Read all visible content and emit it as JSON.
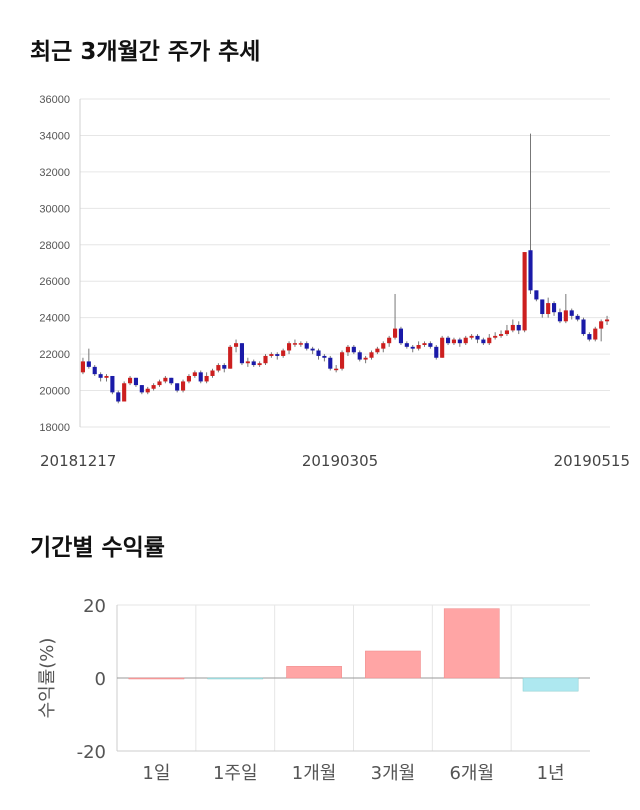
{
  "section1": {
    "title": "최근 3개월간 주가 추세"
  },
  "section2": {
    "title": "기간별 수익률"
  },
  "colors": {
    "up": "#cc1f1f",
    "down": "#1a1aa8",
    "bar_positive": "#ffa5a5",
    "bar_negative": "#aee8f0",
    "grid": "#e6e6e6"
  },
  "chart_data": [
    {
      "type": "candlestick",
      "title": "",
      "y_ticks": [
        18000,
        20000,
        22000,
        24000,
        26000,
        28000,
        30000,
        32000,
        34000,
        36000
      ],
      "ylim": [
        18000,
        36000
      ],
      "x_tick_labels": [
        "20181217",
        "20190305",
        "20190515"
      ],
      "grid": true,
      "candles": [
        [
          21000,
          21600,
          21800,
          20900
        ],
        [
          21600,
          21300,
          22300,
          21200
        ],
        [
          21300,
          20900,
          21400,
          20800
        ],
        [
          20900,
          20700,
          21000,
          20500
        ],
        [
          20700,
          20800,
          20900,
          20500
        ],
        [
          20800,
          19900,
          20800,
          19800
        ],
        [
          19900,
          19400,
          20000,
          19300
        ],
        [
          19400,
          20400,
          20500,
          19400
        ],
        [
          20400,
          20700,
          20800,
          20300
        ],
        [
          20700,
          20300,
          20700,
          20200
        ],
        [
          20300,
          19900,
          20300,
          19800
        ],
        [
          19900,
          20100,
          20200,
          19800
        ],
        [
          20100,
          20300,
          20400,
          20000
        ],
        [
          20300,
          20500,
          20600,
          20200
        ],
        [
          20500,
          20700,
          20800,
          20400
        ],
        [
          20700,
          20400,
          20700,
          20300
        ],
        [
          20400,
          20000,
          20400,
          19900
        ],
        [
          20000,
          20500,
          20600,
          19900
        ],
        [
          20500,
          20800,
          20900,
          20400
        ],
        [
          20800,
          21000,
          21100,
          20700
        ],
        [
          21000,
          20500,
          21100,
          20400
        ],
        [
          20500,
          20800,
          21000,
          20400
        ],
        [
          20800,
          21100,
          21200,
          20700
        ],
        [
          21100,
          21400,
          21500,
          21000
        ],
        [
          21400,
          21200,
          21500,
          21000
        ],
        [
          21200,
          22400,
          22500,
          21200
        ],
        [
          22400,
          22600,
          22800,
          22100
        ],
        [
          22600,
          21500,
          22600,
          21400
        ],
        [
          21500,
          21600,
          21800,
          21300
        ],
        [
          21600,
          21400,
          21700,
          21300
        ],
        [
          21400,
          21500,
          21600,
          21300
        ],
        [
          21500,
          21900,
          22000,
          21400
        ],
        [
          21900,
          22000,
          22100,
          21800
        ],
        [
          22000,
          21900,
          22100,
          21700
        ],
        [
          21900,
          22200,
          22300,
          21800
        ],
        [
          22200,
          22600,
          22700,
          22000
        ],
        [
          22600,
          22600,
          22800,
          22400
        ],
        [
          22600,
          22600,
          22700,
          22400
        ],
        [
          22600,
          22300,
          22700,
          22200
        ],
        [
          22300,
          22200,
          22400,
          22000
        ],
        [
          22200,
          21900,
          22300,
          21700
        ],
        [
          21900,
          21800,
          22000,
          21600
        ],
        [
          21800,
          21200,
          21900,
          21100
        ],
        [
          21200,
          21200,
          21400,
          21000
        ],
        [
          21200,
          22100,
          22200,
          21100
        ],
        [
          22100,
          22400,
          22500,
          21900
        ],
        [
          22400,
          22100,
          22500,
          22000
        ],
        [
          22100,
          21700,
          22200,
          21600
        ],
        [
          21700,
          21800,
          21900,
          21500
        ],
        [
          21800,
          22100,
          22200,
          21700
        ],
        [
          22100,
          22300,
          22400,
          22000
        ],
        [
          22300,
          22600,
          22700,
          22100
        ],
        [
          22600,
          22900,
          23000,
          22400
        ],
        [
          22900,
          23400,
          25300,
          22800
        ],
        [
          23400,
          22600,
          23500,
          22500
        ],
        [
          22600,
          22400,
          22700,
          22300
        ],
        [
          22400,
          22300,
          22500,
          22100
        ],
        [
          22300,
          22500,
          22700,
          22200
        ],
        [
          22500,
          22600,
          22700,
          22400
        ],
        [
          22600,
          22400,
          22700,
          22300
        ],
        [
          22400,
          21800,
          22500,
          21700
        ],
        [
          21800,
          22900,
          23000,
          21800
        ],
        [
          22900,
          22600,
          23000,
          22500
        ],
        [
          22600,
          22800,
          22900,
          22500
        ],
        [
          22800,
          22600,
          22900,
          22400
        ],
        [
          22600,
          22900,
          23000,
          22500
        ],
        [
          22900,
          23000,
          23100,
          22800
        ],
        [
          23000,
          22800,
          23100,
          22600
        ],
        [
          22800,
          22600,
          22900,
          22500
        ],
        [
          22600,
          22900,
          23100,
          22500
        ],
        [
          22900,
          23000,
          23200,
          22800
        ],
        [
          23000,
          23100,
          23300,
          22900
        ],
        [
          23100,
          23300,
          23600,
          23000
        ],
        [
          23300,
          23600,
          23900,
          23200
        ],
        [
          23600,
          23300,
          23800,
          23100
        ],
        [
          23300,
          27600,
          27600,
          23200
        ],
        [
          27700,
          25500,
          34100,
          25300
        ],
        [
          25500,
          25000,
          25500,
          24900
        ],
        [
          25000,
          24200,
          25000,
          24000
        ],
        [
          24200,
          24800,
          25100,
          24000
        ],
        [
          24800,
          24300,
          24900,
          24100
        ],
        [
          24300,
          23800,
          24500,
          23700
        ],
        [
          23800,
          24400,
          25300,
          23700
        ],
        [
          24400,
          24100,
          24500,
          23900
        ],
        [
          24100,
          23900,
          24200,
          23800
        ],
        [
          23900,
          23100,
          24000,
          23000
        ],
        [
          23100,
          22800,
          23200,
          22700
        ],
        [
          22800,
          23400,
          23500,
          22700
        ],
        [
          23400,
          23800,
          23900,
          22700
        ],
        [
          23800,
          23900,
          24100,
          23600
        ]
      ]
    },
    {
      "type": "bar",
      "title": "",
      "ylabel": "수익률(%)",
      "ylim": [
        -20,
        20
      ],
      "y_ticks": [
        20,
        0,
        -20
      ],
      "categories": [
        "1일",
        "1주일",
        "1개월",
        "3개월",
        "6개월",
        "1년"
      ],
      "values": [
        0,
        -0.2,
        3.2,
        7.4,
        19.0,
        -3.6
      ],
      "grid": true
    }
  ]
}
